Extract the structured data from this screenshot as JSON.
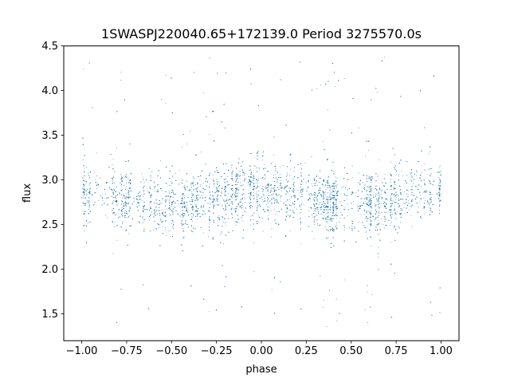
{
  "chart_data": {
    "type": "scatter",
    "title": "1SWASPJ220040.65+172139.0 Period 3275570.0s",
    "xlabel": "phase",
    "ylabel": "flux",
    "xlim": [
      -1.1,
      1.1
    ],
    "ylim": [
      1.2,
      4.5
    ],
    "xticks": [
      -1.0,
      -0.75,
      -0.5,
      -0.25,
      0.0,
      0.25,
      0.5,
      0.75,
      1.0
    ],
    "xtick_labels": [
      "−1.00",
      "−0.75",
      "−0.50",
      "−0.25",
      "0.00",
      "0.25",
      "0.50",
      "0.75",
      "1.00"
    ],
    "yticks": [
      1.5,
      2.0,
      2.5,
      3.0,
      3.5,
      4.0,
      4.5
    ],
    "ytick_labels": [
      "1.5",
      "2.0",
      "2.5",
      "3.0",
      "3.5",
      "4.0",
      "4.5"
    ],
    "grid": false,
    "marker_color": "#1f77b4",
    "series": [
      {
        "x_range": [
          -1.0,
          1.0
        ],
        "center_flux": 2.8,
        "core_flux_range": [
          2.5,
          3.1
        ],
        "outlier_flux_range": [
          1.35,
          4.4
        ],
        "approx_point_count": 60000
      }
    ]
  }
}
